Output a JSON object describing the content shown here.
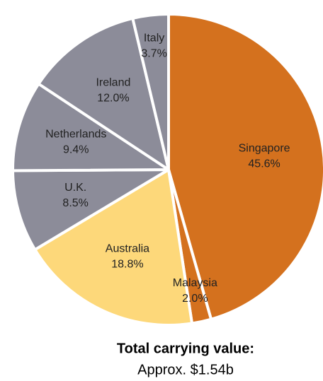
{
  "chart_data": {
    "type": "pie",
    "title": "Total carrying value:",
    "subtitle": "Approx. $1.54b",
    "categories": [
      "Singapore",
      "Malaysia",
      "Australia",
      "U.K.",
      "Netherlands",
      "Ireland",
      "Italy"
    ],
    "values": [
      45.6,
      2.0,
      18.8,
      8.5,
      9.4,
      12.0,
      3.7
    ],
    "value_labels": [
      "45.6%",
      "2.0%",
      "18.8%",
      "8.5%",
      "9.4%",
      "12.0%",
      "3.7%"
    ],
    "colors": [
      "#d4711e",
      "#d4711e",
      "#fdd87a",
      "#8c8c99",
      "#8c8c99",
      "#8c8c99",
      "#8c8c99"
    ]
  }
}
